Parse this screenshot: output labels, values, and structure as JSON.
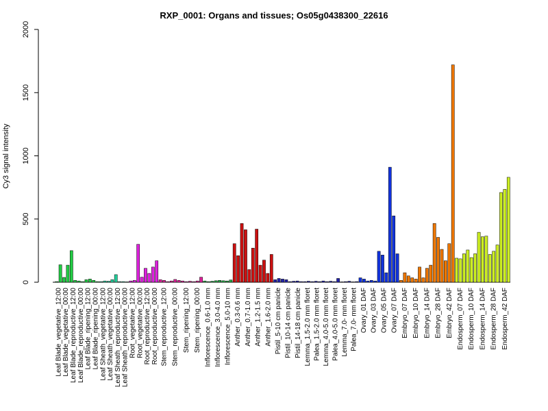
{
  "chart_data": {
    "type": "bar",
    "title": "RXP_0001: Organs and tissues; Os05g0438300_22616",
    "xlabel": "",
    "ylabel": "Cy3 signal intensity",
    "ylim": [
      0,
      2000
    ],
    "yticks": [
      0,
      500,
      1000,
      1500,
      2000
    ],
    "grid": false,
    "legend": "none",
    "groups": [
      {
        "color": "#22cc44",
        "labels": [
          "Leaf Blade_vegetative_12:00",
          "Leaf Blade_vegetative_00:00",
          "Leaf Blade_reproductive_12:00",
          "Leaf Blade_reproductive_00:00",
          "Leaf Blade_ripening_12:00",
          "Leaf Blade_ripening_00:00"
        ],
        "values": [
          5,
          138,
          38,
          135,
          250,
          15,
          10,
          5,
          20,
          25,
          15,
          5
        ]
      },
      {
        "color": "#22cc99",
        "labels": [
          "Leaf Sheath_vegetative_12:00",
          "Leaf Sheath_vegetative_00:00",
          "Leaf Sheath_reproductive_12:00",
          "Leaf Sheath_reproductive_00:00"
        ],
        "values": [
          5,
          10,
          8,
          20,
          60,
          5,
          5,
          3
        ]
      },
      {
        "color": "#dd22dd",
        "labels": [
          "Root_vegetative_12:00",
          "Root_vegetative_00:00",
          "Root_reproductive_12:00",
          "Root_reproductive_00:00"
        ],
        "values": [
          10,
          15,
          300,
          40,
          110,
          70,
          120,
          170
        ]
      },
      {
        "color": "#dd2299",
        "labels": [
          "Stem_reproductive_12:00",
          "Stem_reproductive_00:00",
          "Stem_ripening_12:00",
          "Stem_ripening_00:00"
        ],
        "values": [
          20,
          15,
          5,
          10,
          22,
          15,
          10,
          5,
          8,
          5,
          10,
          40
        ]
      },
      {
        "color": "#22aa44",
        "labels": [
          "Inflorescence_0.6-1.0 mm",
          "Inflorescence_3.0-4.0 mm",
          "Inflorescence_5.0-10 mm"
        ],
        "values": [
          10,
          5,
          8,
          12,
          15,
          12,
          10,
          18
        ]
      },
      {
        "color": "#cc1111",
        "labels": [
          "Anther_0.3-0.6 mm",
          "Anther_0.7-1.0 mm",
          "Anther_1.2-1.5 mm",
          "Anther_1.6-2.0 mm"
        ],
        "values": [
          305,
          210,
          465,
          415,
          100,
          270,
          420,
          135,
          175,
          70,
          220
        ]
      },
      {
        "color": "#2222aa",
        "labels": [
          "Pistil_5-10 cm panicle",
          "Pistil_10-14 cm panicle",
          "Pistil_14-18 cm panicle"
        ],
        "values": [
          20,
          30,
          25,
          20,
          5,
          8,
          10,
          5
        ]
      },
      {
        "color": "#2222aa",
        "labels": [
          "Lemma_1.5-2.0 mm floret",
          "Palea_1.5-2.0 mm floret",
          "Lemma_4.0-5.0 mm floret",
          "Palea_4.0-5.0 mm floret",
          "Lemma_7.0- mm floret",
          "Palea_7.0- mm floret"
        ],
        "values": [
          5,
          8,
          5,
          8,
          5,
          10,
          5,
          8,
          5,
          30,
          3,
          5,
          8,
          3,
          5
        ]
      },
      {
        "color": "#1133dd",
        "labels": [
          "Ovary_01 DAF",
          "Ovary_03 DAF",
          "Ovary_05 DAF",
          "Ovary_07 DAF"
        ],
        "values": [
          35,
          25,
          10,
          15,
          10,
          245,
          215,
          75,
          910,
          525,
          225
        ]
      },
      {
        "color": "#ee7700",
        "labels": [
          "Embryo_07 DAF",
          "Embryo_10 DAF",
          "Embryo_14 DAF",
          "Embryo_28 DAF",
          "Embryo_42 DAF"
        ],
        "values": [
          15,
          75,
          50,
          35,
          25,
          120,
          35,
          110,
          135,
          465,
          355,
          260,
          170,
          305,
          1720
        ]
      },
      {
        "color": "#ccee22",
        "labels": [
          "Endosperm_07 DAF",
          "Endosperm_10 DAF",
          "Endosperm_14 DAF",
          "Endosperm_28 DAF",
          "Endosperm_42 DAF"
        ],
        "values": [
          190,
          185,
          225,
          255,
          195,
          225,
          395,
          360,
          365,
          220,
          245,
          295,
          710,
          735,
          830
        ]
      }
    ]
  }
}
